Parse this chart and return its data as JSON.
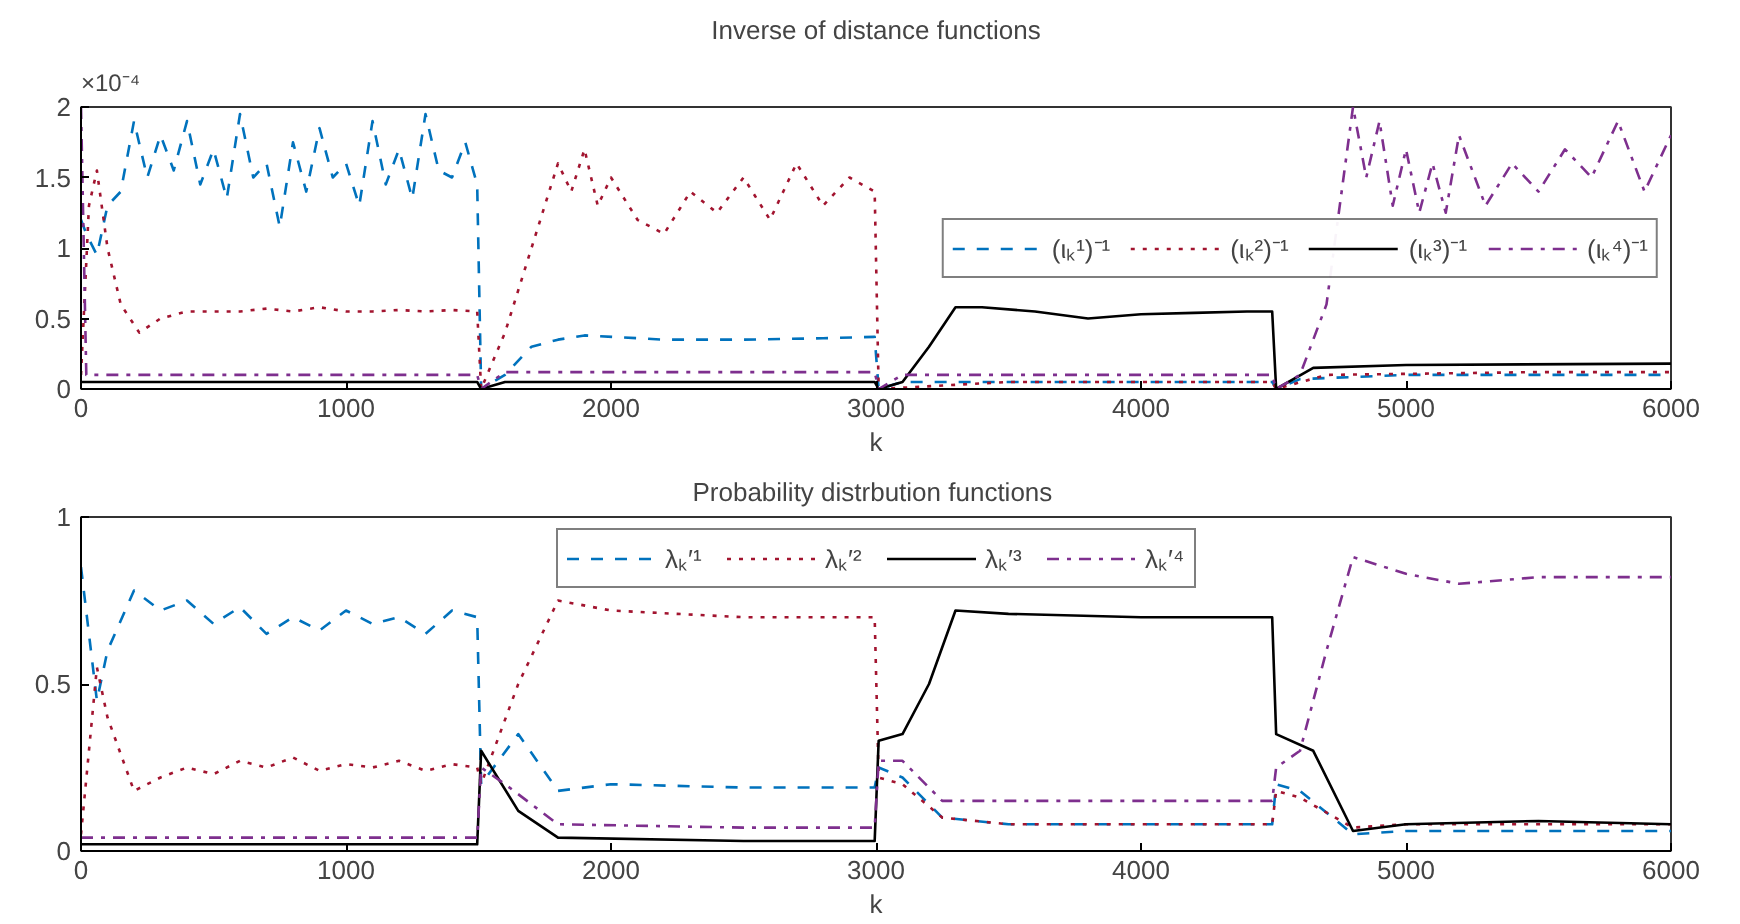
{
  "chart_data": [
    {
      "type": "line",
      "title": "Inverse of distance functions",
      "xlabel": "k",
      "annotations": [
        "×10⁻⁴"
      ],
      "xlim": [
        0,
        6000
      ],
      "xticks": [
        0,
        1000,
        2000,
        3000,
        4000,
        5000,
        6000
      ],
      "ylim": [
        0,
        2
      ],
      "yticks": [
        0,
        0.5,
        1,
        1.5,
        2
      ],
      "grid": false,
      "legend": "right",
      "series": [
        {
          "name": "(ιₖ¹)⁻¹",
          "color": "#0072bd",
          "line_style": "dashed",
          "x": [
            0,
            20,
            60,
            100,
            150,
            200,
            250,
            300,
            350,
            400,
            450,
            500,
            550,
            600,
            650,
            700,
            750,
            800,
            850,
            900,
            950,
            1000,
            1050,
            1100,
            1150,
            1200,
            1250,
            1300,
            1350,
            1400,
            1450,
            1495,
            1510,
            1600,
            1700,
            1800,
            1900,
            2200,
            2500,
            2800,
            2995,
            3010,
            3100,
            3500,
            4000,
            4495,
            4510,
            4600,
            5000,
            5500,
            6000
          ],
          "values": [
            1.2,
            1.1,
            0.95,
            1.3,
            1.4,
            1.9,
            1.5,
            1.8,
            1.55,
            1.9,
            1.45,
            1.7,
            1.35,
            1.95,
            1.5,
            1.6,
            1.15,
            1.75,
            1.4,
            1.85,
            1.5,
            1.6,
            1.3,
            1.9,
            1.45,
            1.7,
            1.35,
            1.95,
            1.55,
            1.5,
            1.75,
            1.45,
            0.0,
            0.1,
            0.3,
            0.35,
            0.38,
            0.35,
            0.35,
            0.36,
            0.37,
            0.0,
            0.05,
            0.05,
            0.05,
            0.05,
            0.0,
            0.07,
            0.1,
            0.1,
            0.1
          ]
        },
        {
          "name": "(ιₖ²)⁻¹",
          "color": "#a2142f",
          "line_style": "dotted",
          "x": [
            0,
            30,
            60,
            100,
            150,
            220,
            300,
            400,
            500,
            600,
            700,
            800,
            900,
            1000,
            1100,
            1200,
            1300,
            1400,
            1495,
            1510,
            1600,
            1700,
            1800,
            1850,
            1900,
            1950,
            2000,
            2100,
            2200,
            2300,
            2400,
            2500,
            2600,
            2700,
            2800,
            2900,
            2995,
            3010,
            3500,
            4000,
            4495,
            4510,
            4700,
            5500,
            6000
          ],
          "values": [
            0.1,
            1.3,
            1.55,
            1.0,
            0.6,
            0.4,
            0.5,
            0.55,
            0.55,
            0.55,
            0.57,
            0.55,
            0.58,
            0.55,
            0.55,
            0.56,
            0.55,
            0.56,
            0.55,
            0.0,
            0.4,
            1.0,
            1.6,
            1.4,
            1.7,
            1.3,
            1.5,
            1.2,
            1.1,
            1.4,
            1.25,
            1.5,
            1.2,
            1.6,
            1.3,
            1.5,
            1.4,
            0.0,
            0.05,
            0.05,
            0.05,
            0.0,
            0.1,
            0.12,
            0.12
          ]
        },
        {
          "name": "(ιₖ³)⁻¹",
          "color": "#000000",
          "line_style": "solid",
          "x": [
            0,
            1495,
            1510,
            1600,
            2995,
            3010,
            3100,
            3200,
            3300,
            3400,
            3600,
            3800,
            4000,
            4200,
            4400,
            4495,
            4510,
            4650,
            5000,
            6000
          ],
          "values": [
            0.05,
            0.05,
            0.0,
            0.05,
            0.05,
            0.0,
            0.05,
            0.3,
            0.58,
            0.58,
            0.55,
            0.5,
            0.53,
            0.54,
            0.55,
            0.55,
            0.0,
            0.15,
            0.17,
            0.18
          ]
        },
        {
          "name": "(ιₖ⁴)⁻¹",
          "color": "#7e2f8e",
          "line_style": "dashdot",
          "x": [
            0,
            20,
            1495,
            1510,
            1600,
            2995,
            3010,
            3100,
            4495,
            4510,
            4600,
            4700,
            4750,
            4800,
            4850,
            4900,
            4950,
            5000,
            5050,
            5100,
            5150,
            5200,
            5300,
            5400,
            5500,
            5600,
            5700,
            5800,
            5900,
            6000
          ],
          "values": [
            2.0,
            0.1,
            0.1,
            0.0,
            0.12,
            0.12,
            0.0,
            0.1,
            0.1,
            0.0,
            0.1,
            0.6,
            1.3,
            2.0,
            1.5,
            1.9,
            1.3,
            1.7,
            1.25,
            1.6,
            1.25,
            1.8,
            1.3,
            1.6,
            1.4,
            1.7,
            1.5,
            1.9,
            1.4,
            1.8
          ]
        }
      ]
    },
    {
      "type": "line",
      "title": "Probability  distrbution functions",
      "xlabel": "k",
      "xlim": [
        0,
        6000
      ],
      "xticks": [
        0,
        1000,
        2000,
        3000,
        4000,
        5000,
        6000
      ],
      "ylim": [
        0,
        1
      ],
      "yticks": [
        0,
        0.5,
        1
      ],
      "grid": false,
      "legend": "top",
      "series": [
        {
          "name": "λₖ′¹",
          "color": "#0072bd",
          "line_style": "dashed",
          "x": [
            0,
            60,
            100,
            200,
            300,
            400,
            500,
            600,
            700,
            800,
            900,
            1000,
            1100,
            1200,
            1300,
            1400,
            1495,
            1510,
            1650,
            1800,
            2000,
            2500,
            2995,
            3010,
            3100,
            3250,
            3500,
            4000,
            4495,
            4510,
            4600,
            4800,
            5000,
            5500,
            6000
          ],
          "values": [
            0.85,
            0.45,
            0.6,
            0.78,
            0.72,
            0.75,
            0.68,
            0.73,
            0.65,
            0.7,
            0.66,
            0.72,
            0.68,
            0.7,
            0.65,
            0.72,
            0.7,
            0.2,
            0.35,
            0.18,
            0.2,
            0.19,
            0.19,
            0.25,
            0.22,
            0.1,
            0.08,
            0.08,
            0.08,
            0.2,
            0.18,
            0.05,
            0.06,
            0.06,
            0.06
          ]
        },
        {
          "name": "λₖ′²",
          "color": "#a2142f",
          "line_style": "dotted",
          "x": [
            0,
            60,
            100,
            200,
            300,
            400,
            500,
            600,
            700,
            800,
            900,
            1000,
            1100,
            1200,
            1300,
            1400,
            1495,
            1510,
            1650,
            1800,
            2000,
            2500,
            2995,
            3010,
            3100,
            3250,
            3500,
            4000,
            4495,
            4510,
            4600,
            4800,
            5000,
            5500,
            6000
          ],
          "values": [
            0.05,
            0.55,
            0.4,
            0.18,
            0.22,
            0.25,
            0.23,
            0.27,
            0.25,
            0.28,
            0.24,
            0.26,
            0.25,
            0.27,
            0.24,
            0.26,
            0.25,
            0.2,
            0.5,
            0.75,
            0.72,
            0.7,
            0.7,
            0.22,
            0.2,
            0.1,
            0.08,
            0.08,
            0.08,
            0.18,
            0.16,
            0.07,
            0.08,
            0.08,
            0.08
          ]
        },
        {
          "name": "λₖ′³",
          "color": "#000000",
          "line_style": "solid",
          "x": [
            0,
            1495,
            1510,
            1650,
            1800,
            2500,
            2995,
            3010,
            3100,
            3200,
            3300,
            3500,
            4000,
            4495,
            4510,
            4650,
            4800,
            5000,
            5500,
            6000
          ],
          "values": [
            0.02,
            0.02,
            0.3,
            0.12,
            0.04,
            0.03,
            0.03,
            0.33,
            0.35,
            0.5,
            0.72,
            0.71,
            0.7,
            0.7,
            0.35,
            0.3,
            0.06,
            0.08,
            0.09,
            0.08
          ]
        },
        {
          "name": "λₖ′⁴",
          "color": "#7e2f8e",
          "line_style": "dashdot",
          "x": [
            0,
            1495,
            1510,
            1600,
            1800,
            2500,
            2995,
            3010,
            3100,
            3250,
            3500,
            4000,
            4495,
            4510,
            4600,
            4700,
            4800,
            5000,
            5200,
            5500,
            6000
          ],
          "values": [
            0.04,
            0.04,
            0.25,
            0.2,
            0.08,
            0.07,
            0.07,
            0.27,
            0.27,
            0.15,
            0.15,
            0.15,
            0.15,
            0.25,
            0.3,
            0.6,
            0.88,
            0.83,
            0.8,
            0.82,
            0.82
          ]
        }
      ]
    }
  ]
}
